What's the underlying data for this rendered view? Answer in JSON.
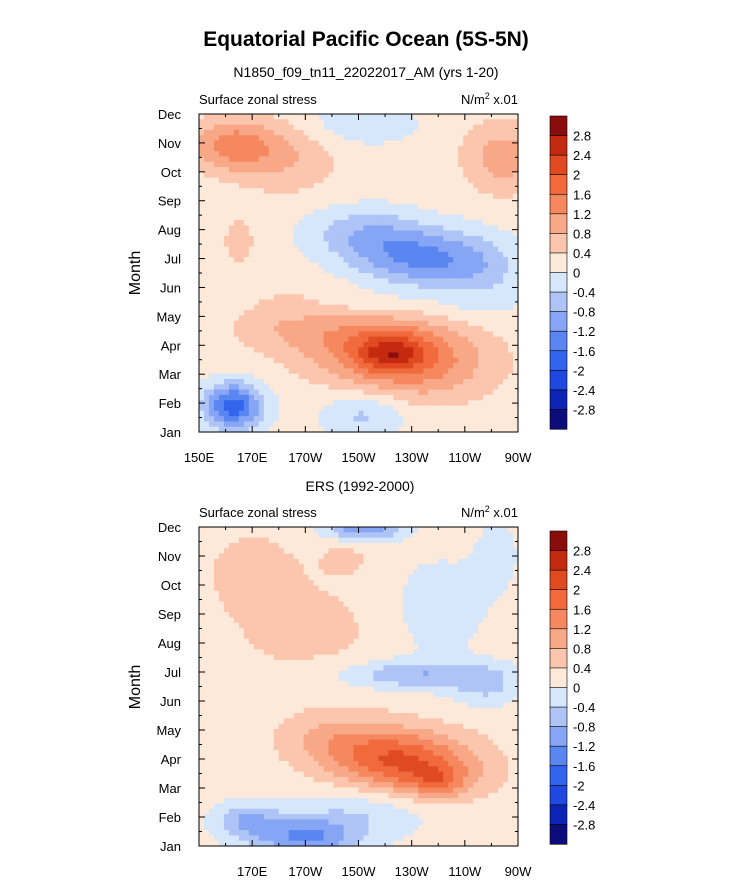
{
  "title": "Equatorial Pacific Ocean (5S-5N)",
  "colors": {
    "levels": [
      "#0c0c7a",
      "#0d23b4",
      "#1e48e0",
      "#3264ee",
      "#5a86f2",
      "#86a5f4",
      "#aec3f6",
      "#d6e6fb",
      "#fde9d9",
      "#fbc6ad",
      "#f8a886",
      "#f5885f",
      "#f06a3c",
      "#e04a20",
      "#c42a10",
      "#8a0d0d"
    ]
  },
  "chart_data": [
    {
      "type": "heatmap",
      "subtitle": "N1850_f09_tn11_22022017_AM (yrs 1-20)",
      "left_label": "Surface zonal stress",
      "right_label_main": "N/m",
      "right_label_sup": "2",
      "right_label_tail": " x.01",
      "ylabel": "Month",
      "x_ticklabels": [
        "150E",
        "170E",
        "170W",
        "150W",
        "130W",
        "110W",
        "90W"
      ],
      "y_ticklabels": [
        "Jan",
        "Feb",
        "Mar",
        "Apr",
        "May",
        "Jun",
        "Jul",
        "Aug",
        "Sep",
        "Oct",
        "Nov",
        "Dec"
      ],
      "colorbar_labels": [
        "2.8",
        "2.4",
        "2",
        "1.6",
        "1.2",
        "0.8",
        "0.4",
        "0",
        "-0.4",
        "-0.8",
        "-1.2",
        "-1.6",
        "-2",
        "-2.4",
        "-2.8"
      ],
      "x_range": [
        150,
        270
      ],
      "x_units": "degrees east",
      "y_range": [
        1,
        12
      ],
      "levels": [
        -2.8,
        -2.4,
        -2.0,
        -1.6,
        -1.2,
        -0.8,
        -0.4,
        0,
        0.4,
        0.8,
        1.2,
        1.6,
        2.0,
        2.4,
        2.8
      ],
      "features": [
        {
          "lon": 163,
          "month": 1.9,
          "amp": -2.0,
          "slon": 11,
          "smonth": 0.8
        },
        {
          "lon": 212,
          "month": 1.6,
          "amp": -0.7,
          "slon": 16,
          "smonth": 0.8
        },
        {
          "lon": 232,
          "month": 3.4,
          "amp": 1.1,
          "slon": 28,
          "smonth": 1.3
        },
        {
          "lon": 215,
          "month": 4.1,
          "amp": 1.0,
          "slon": 26,
          "smonth": 1.2
        },
        {
          "lon": 183,
          "month": 4.9,
          "amp": 0.6,
          "slon": 22,
          "smonth": 1.1
        },
        {
          "lon": 222,
          "month": 3.7,
          "amp": 0.9,
          "slon": 12,
          "smonth": 0.6
        },
        {
          "lon": 207,
          "month": 5.3,
          "amp": -0.3,
          "slon": 50,
          "smonth": 0.6
        },
        {
          "lon": 235,
          "month": 7.0,
          "amp": -1.45,
          "slon": 26,
          "smonth": 1.0
        },
        {
          "lon": 212,
          "month": 7.9,
          "amp": -0.8,
          "slon": 22,
          "smonth": 0.9
        },
        {
          "lon": 258,
          "month": 6.3,
          "amp": -0.4,
          "slon": 14,
          "smonth": 1.2
        },
        {
          "lon": 163,
          "month": 10.9,
          "amp": 1.2,
          "slon": 16,
          "smonth": 0.9
        },
        {
          "lon": 184,
          "month": 10.5,
          "amp": 0.55,
          "slon": 18,
          "smonth": 1.3
        },
        {
          "lon": 264,
          "month": 10.5,
          "amp": 0.85,
          "slon": 14,
          "smonth": 1.2
        },
        {
          "lon": 210,
          "month": 11.7,
          "amp": -0.5,
          "slon": 22,
          "smonth": 0.8
        },
        {
          "lon": 165,
          "month": 7.6,
          "amp": 0.45,
          "slon": 6,
          "smonth": 0.8
        }
      ]
    },
    {
      "type": "heatmap",
      "subtitle": "ERS (1992-2000)",
      "left_label": "Surface zonal stress",
      "right_label_main": "N/m",
      "right_label_sup": "2",
      "right_label_tail": " x.01",
      "ylabel": "Month",
      "x_ticklabels": [
        "170E",
        "170W",
        "150W",
        "130W",
        "110W",
        "90W"
      ],
      "y_ticklabels": [
        "Jan",
        "Feb",
        "Mar",
        "Apr",
        "May",
        "Jun",
        "Jul",
        "Aug",
        "Sep",
        "Oct",
        "Nov",
        "Dec"
      ],
      "colorbar_labels": [
        "2.8",
        "2.4",
        "2",
        "1.6",
        "1.2",
        "0.8",
        "0.4",
        "0",
        "-0.4",
        "-0.8",
        "-1.2",
        "-1.6",
        "-2",
        "-2.4",
        "-2.8"
      ],
      "x_range": [
        150,
        270
      ],
      "x_units": "degrees east",
      "y_range": [
        1,
        12
      ],
      "levels": [
        -2.8,
        -2.4,
        -2.0,
        -1.6,
        -1.2,
        -0.8,
        -0.4,
        0,
        0.4,
        0.8,
        1.2,
        1.6,
        2.0,
        2.4,
        2.8
      ],
      "features": [
        {
          "lon": 190,
          "month": 1.3,
          "amp": -1.45,
          "slon": 20,
          "smonth": 0.7
        },
        {
          "lon": 168,
          "month": 1.9,
          "amp": -0.9,
          "slon": 12,
          "smonth": 0.6
        },
        {
          "lon": 215,
          "month": 2.3,
          "amp": -0.6,
          "slon": 26,
          "smonth": 0.9
        },
        {
          "lon": 232,
          "month": 3.6,
          "amp": 1.25,
          "slon": 26,
          "smonth": 1.1
        },
        {
          "lon": 222,
          "month": 4.2,
          "amp": 0.9,
          "slon": 24,
          "smonth": 1.0
        },
        {
          "lon": 200,
          "month": 4.7,
          "amp": 0.6,
          "slon": 20,
          "smonth": 1.0
        },
        {
          "lon": 240,
          "month": 3.2,
          "amp": 0.7,
          "slon": 10,
          "smonth": 0.5
        },
        {
          "lon": 232,
          "month": 6.9,
          "amp": -0.95,
          "slon": 28,
          "smonth": 0.5
        },
        {
          "lon": 258,
          "month": 6.5,
          "amp": -0.6,
          "slon": 12,
          "smonth": 0.7
        },
        {
          "lon": 190,
          "month": 8.5,
          "amp": 0.35,
          "slon": 30,
          "smonth": 1.8
        },
        {
          "lon": 170,
          "month": 10.5,
          "amp": 0.45,
          "slon": 16,
          "smonth": 1.3
        },
        {
          "lon": 212,
          "month": 11.9,
          "amp": -1.3,
          "slon": 14,
          "smonth": 0.35
        },
        {
          "lon": 240,
          "month": 9.2,
          "amp": -0.5,
          "slon": 16,
          "smonth": 1.6
        },
        {
          "lon": 262,
          "month": 11.0,
          "amp": -0.3,
          "slon": 10,
          "smonth": 1.5
        },
        {
          "lon": 205,
          "month": 10.9,
          "amp": 0.3,
          "slon": 10,
          "smonth": 0.6
        }
      ]
    }
  ]
}
